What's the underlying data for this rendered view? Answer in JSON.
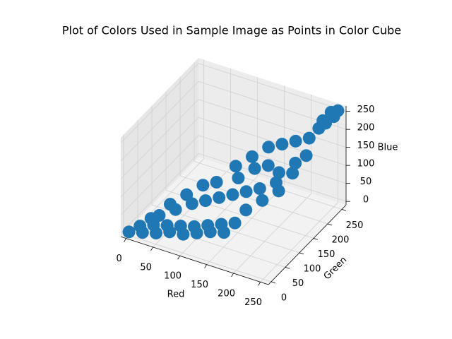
{
  "chart_data": {
    "type": "scatter3d",
    "title": "Plot of Colors Used in Sample Image as Points in Color Cube",
    "xlabel": "Red",
    "ylabel": "Green",
    "zlabel": "Blue",
    "color": "#1f77b4",
    "x": [
      0,
      10,
      20,
      30,
      40,
      50,
      60,
      70,
      80,
      90,
      100,
      110,
      120,
      130,
      140,
      150,
      30,
      50,
      70,
      90,
      110,
      130,
      150,
      170,
      160,
      180,
      200,
      190,
      210,
      170,
      150,
      130,
      120,
      140,
      160,
      180,
      200,
      220,
      230,
      240,
      250,
      255,
      245,
      235,
      100,
      80,
      60,
      40,
      20,
      190,
      210,
      225
    ],
    "y": [
      0,
      20,
      10,
      30,
      20,
      40,
      30,
      50,
      40,
      60,
      50,
      70,
      60,
      80,
      70,
      90,
      50,
      70,
      90,
      100,
      110,
      120,
      130,
      140,
      110,
      130,
      150,
      170,
      190,
      170,
      160,
      140,
      150,
      170,
      190,
      200,
      210,
      220,
      235,
      240,
      250,
      255,
      250,
      240,
      120,
      110,
      90,
      70,
      40,
      160,
      180,
      200
    ],
    "z": [
      0,
      5,
      0,
      10,
      0,
      10,
      5,
      10,
      0,
      10,
      5,
      15,
      10,
      20,
      10,
      25,
      20,
      30,
      40,
      50,
      60,
      70,
      80,
      90,
      50,
      70,
      90,
      120,
      140,
      130,
      120,
      100,
      120,
      140,
      160,
      170,
      180,
      190,
      210,
      225,
      240,
      255,
      250,
      230,
      90,
      80,
      60,
      40,
      15,
      100,
      120,
      160
    ],
    "xlim": [
      -10,
      265
    ],
    "ylim": [
      -10,
      265
    ],
    "zlim": [
      -10,
      265
    ],
    "xticks": [
      0,
      50,
      100,
      150,
      200,
      250
    ],
    "yticks": [
      0,
      50,
      100,
      150,
      200,
      250
    ],
    "zticks": [
      0,
      50,
      100,
      150,
      200,
      250
    ]
  }
}
